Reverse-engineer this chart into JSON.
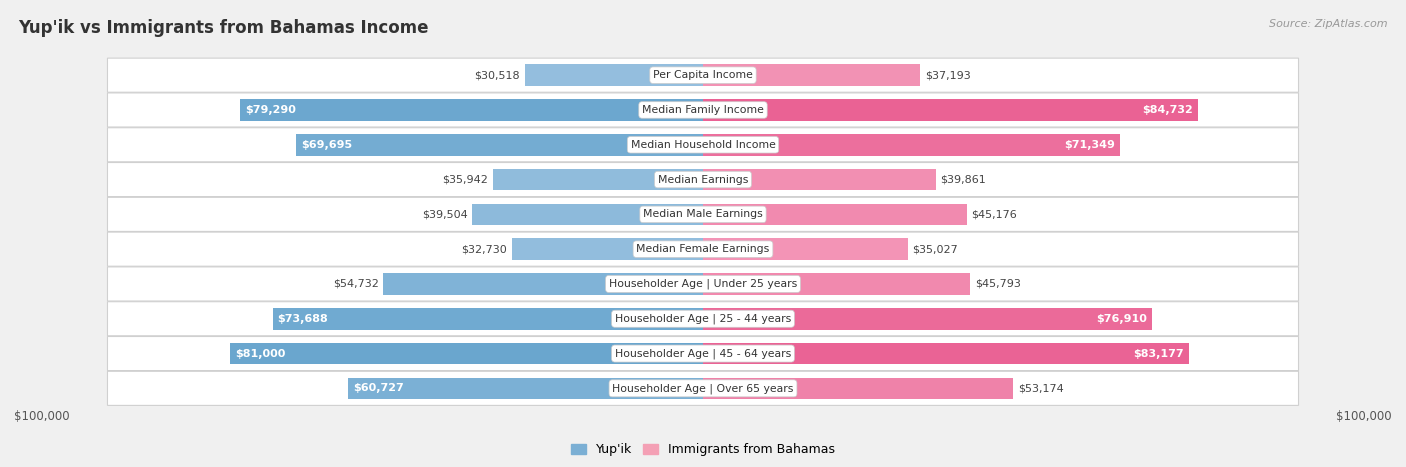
{
  "title": "Yup'ik vs Immigrants from Bahamas Income",
  "source": "Source: ZipAtlas.com",
  "categories": [
    "Per Capita Income",
    "Median Family Income",
    "Median Household Income",
    "Median Earnings",
    "Median Male Earnings",
    "Median Female Earnings",
    "Householder Age | Under 25 years",
    "Householder Age | 25 - 44 years",
    "Householder Age | 45 - 64 years",
    "Householder Age | Over 65 years"
  ],
  "yupik_values": [
    30518,
    79290,
    69695,
    35942,
    39504,
    32730,
    54732,
    73688,
    81000,
    60727
  ],
  "bahamas_values": [
    37193,
    84732,
    71349,
    39861,
    45176,
    35027,
    45793,
    76910,
    83177,
    53174
  ],
  "yupik_labels": [
    "$30,518",
    "$79,290",
    "$69,695",
    "$35,942",
    "$39,504",
    "$32,730",
    "$54,732",
    "$73,688",
    "$81,000",
    "$60,727"
  ],
  "bahamas_labels": [
    "$37,193",
    "$84,732",
    "$71,349",
    "$39,861",
    "$45,176",
    "$35,027",
    "$45,793",
    "$76,910",
    "$83,177",
    "$53,174"
  ],
  "yupik_color_light": "#aecde8",
  "yupik_color_dark": "#5b9ec9",
  "bahamas_color_light": "#f9b8ce",
  "bahamas_color_dark": "#e8538a",
  "max_value": 100000,
  "legend_yupik": "Yup'ik",
  "legend_bahamas": "Immigrants from Bahamas",
  "axis_label_left": "$100,000",
  "axis_label_right": "$100,000",
  "threshold_white_label": 50000
}
